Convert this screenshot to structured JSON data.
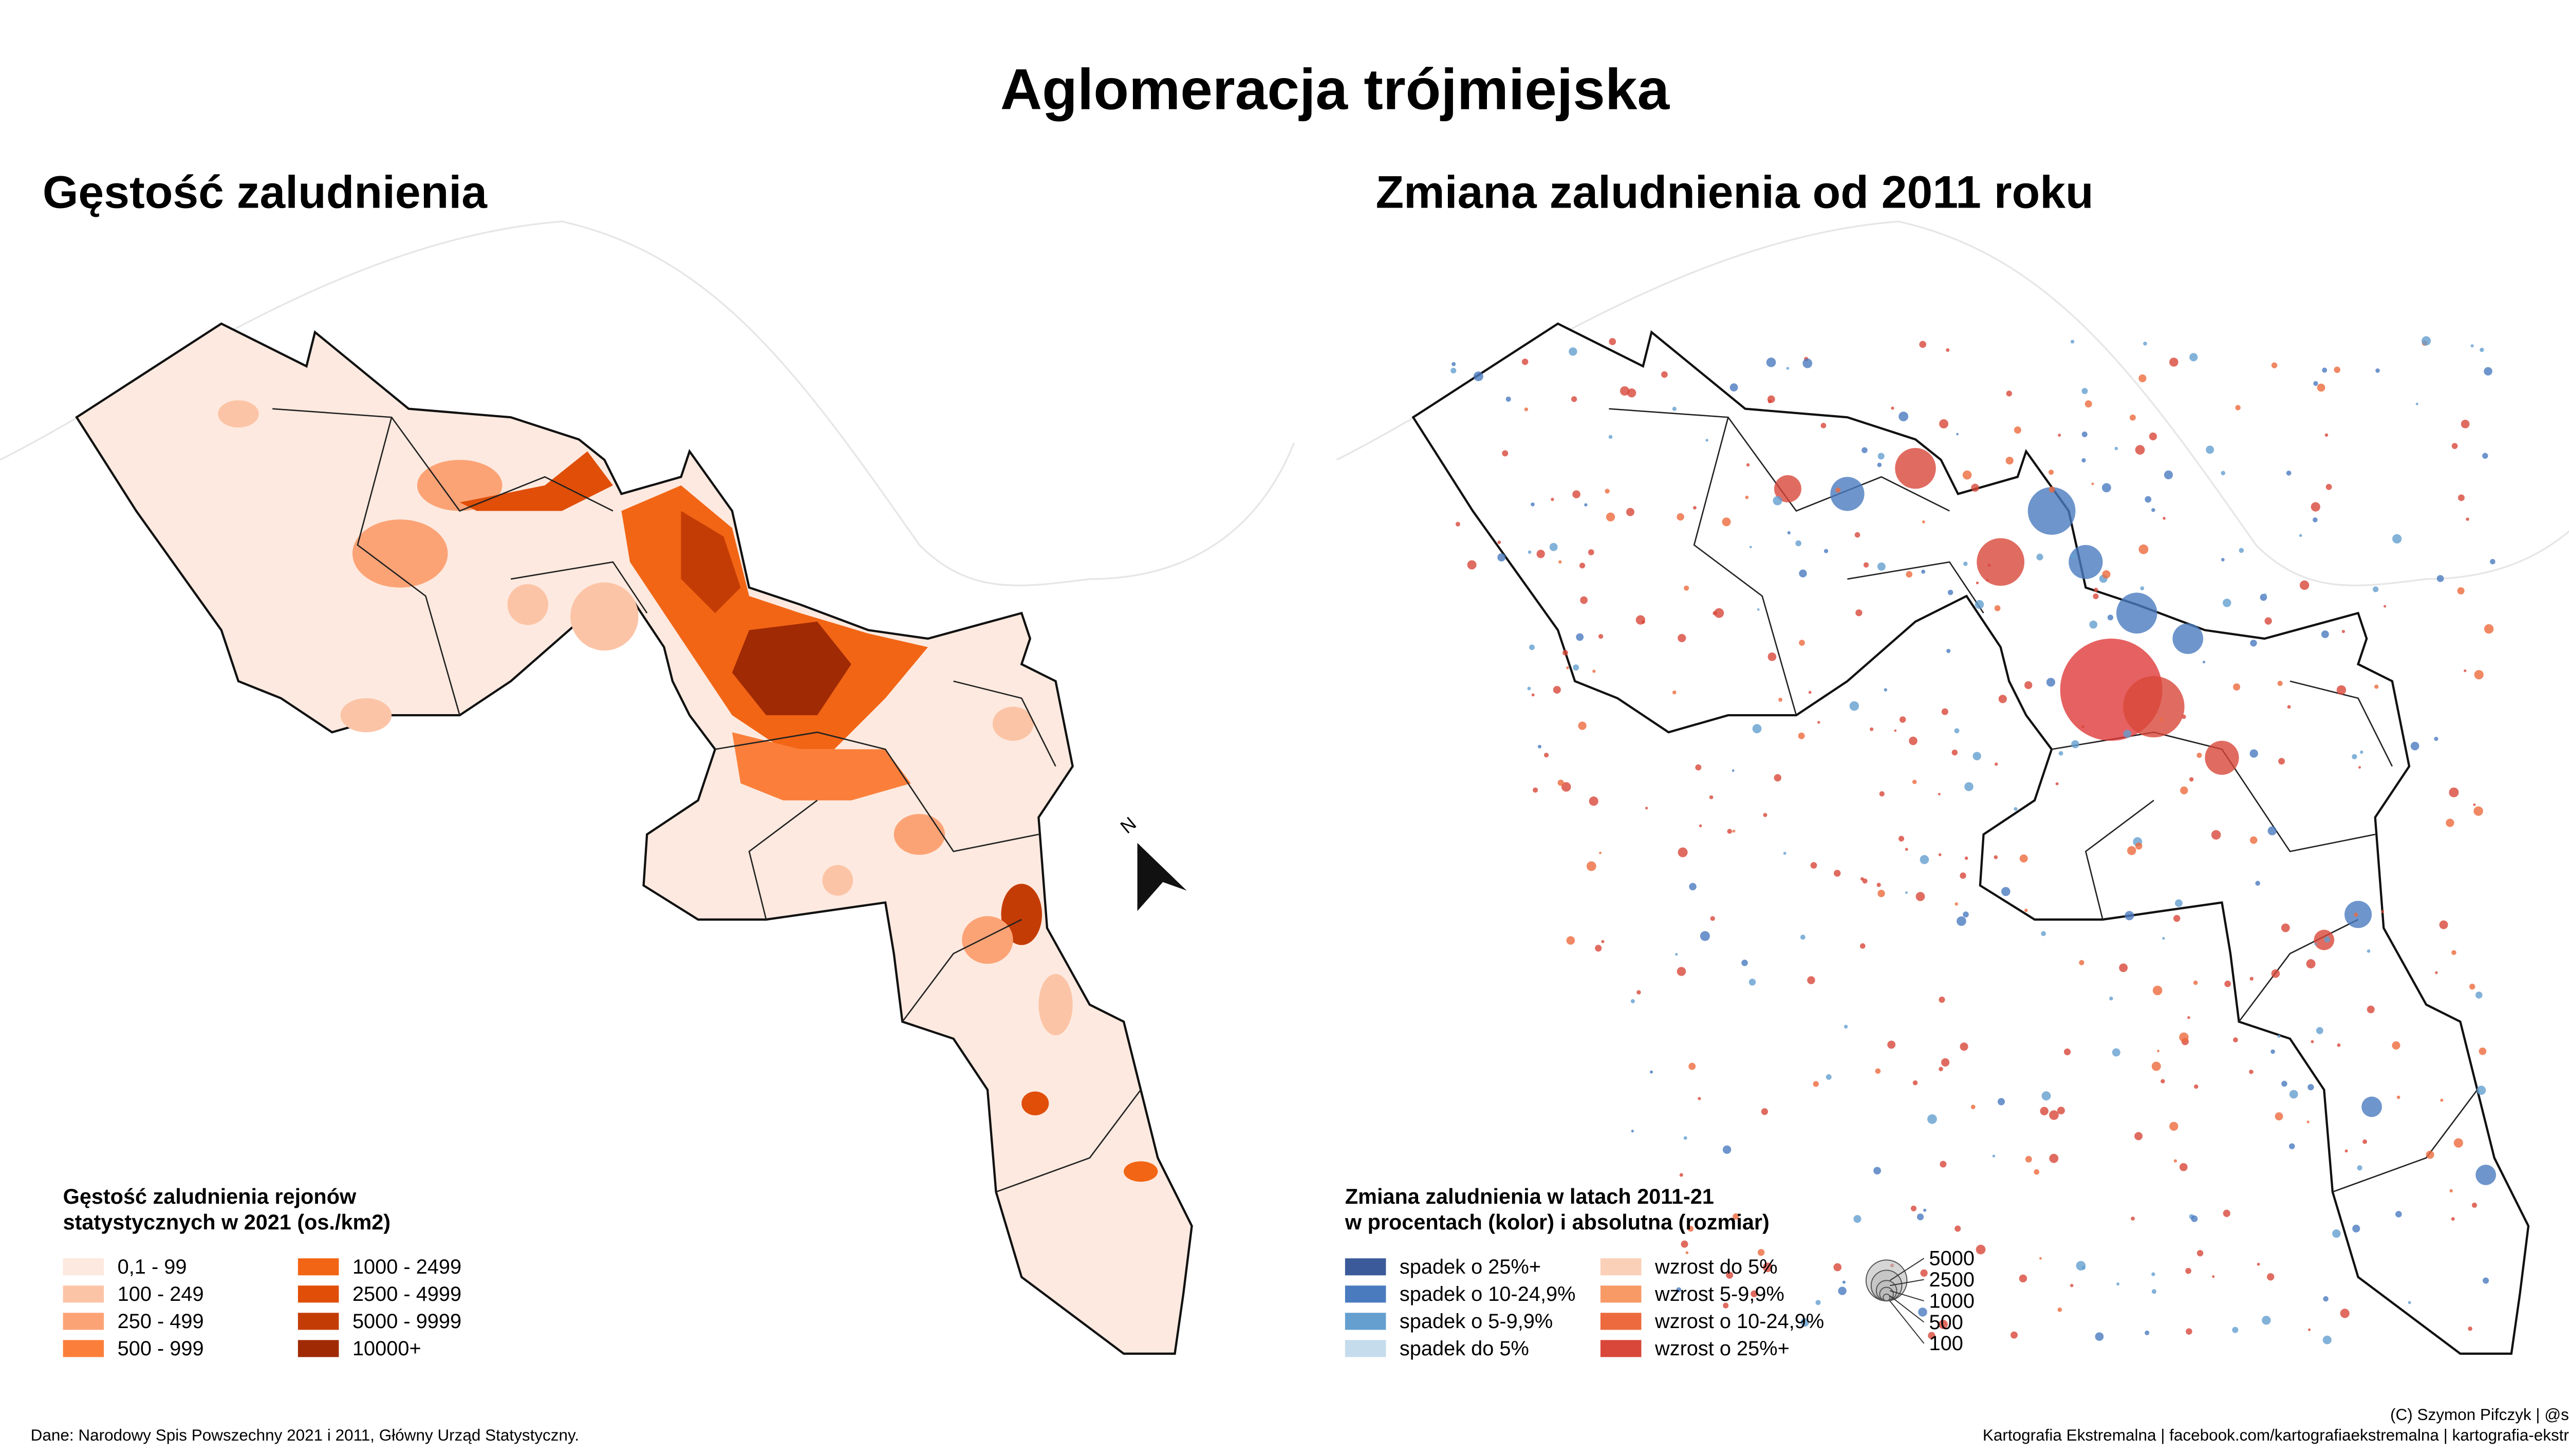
{
  "title": "Aglomeracja trójmiejska",
  "north_arrow": "N",
  "left_map": {
    "title": "Gęstość zaludnienia",
    "legend": {
      "title_lines": [
        "Gęstość zaludnienia rejonów",
        "statystycznych w 2021 (os./km2)"
      ],
      "items": [
        {
          "label": "0,1 - 99",
          "color": "#fde9df"
        },
        {
          "label": "100 - 249",
          "color": "#fcc4a6"
        },
        {
          "label": "250 - 499",
          "color": "#fca376"
        },
        {
          "label": "500 - 999",
          "color": "#fb7f3a"
        },
        {
          "label": "1000 - 2499",
          "color": "#f26515"
        },
        {
          "label": "2500 - 4999",
          "color": "#e04e08"
        },
        {
          "label": "5000 - 9999",
          "color": "#c43c05"
        },
        {
          "label": "10000+",
          "color": "#a02a03"
        }
      ]
    }
  },
  "right_map": {
    "title": "Zmiana zaludnienia od 2011 roku",
    "legend": {
      "title_lines": [
        "Zmiana zaludnienia w latach 2011-21",
        "w procentach (kolor) i absolutna (rozmiar)"
      ],
      "items": [
        {
          "label": "spadek o 25%+",
          "color": "#3b5a9a"
        },
        {
          "label": "spadek o 10-24,9%",
          "color": "#4a7bbf"
        },
        {
          "label": "spadek o 5-9,9%",
          "color": "#649fd0"
        },
        {
          "label": "spadek do 5%",
          "color": "#c5dcec"
        },
        {
          "label": "wzrost do 5%",
          "color": "#fbd0b8"
        },
        {
          "label": "wzrost 5-9,9%",
          "color": "#f79a66"
        },
        {
          "label": "wzrost o 10-24,9%",
          "color": "#ec6a3d"
        },
        {
          "label": "wzrost o 25%+",
          "color": "#d8473a"
        }
      ],
      "size_labels": [
        "5000",
        "2500",
        "1000",
        "500",
        "100"
      ]
    }
  },
  "footer": {
    "source": "Dane: Narodowy Spis Powszechny 2021 i 2011, Główny Urząd Statystyczny.",
    "credit_lines": [
      "(C) Szymon Pifczyk | @sheemawn",
      "Kartografia Ekstremalna | facebook.com/kartografiaekstremalna | kartografia-ekstremalna.pl"
    ]
  }
}
